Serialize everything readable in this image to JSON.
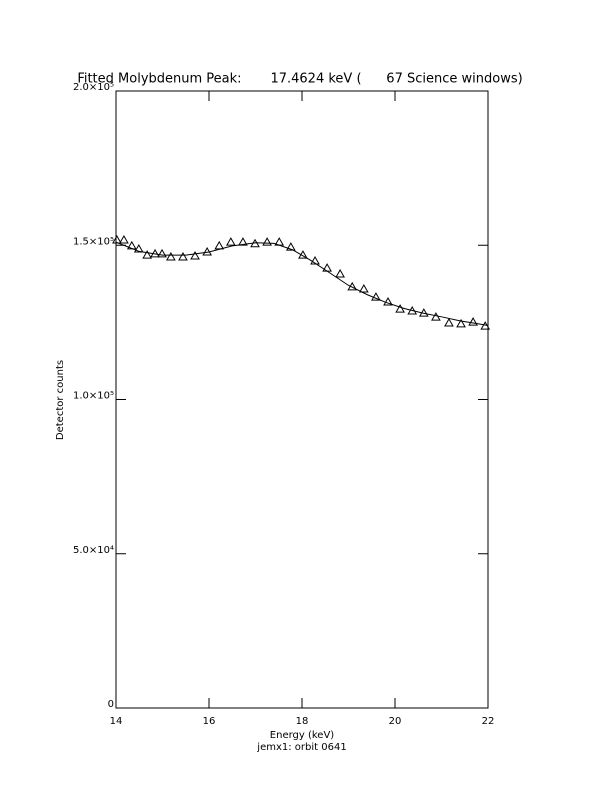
{
  "chart_data": {
    "type": "scatter",
    "title": "Fitted Molybdenum Peak:       17.4624 keV (      67 Science windows)",
    "x_label": "Energy (keV)",
    "subtitle": "jemx1: orbit 0641",
    "y_label": "Detector counts",
    "xlim": [
      14,
      22
    ],
    "xticks": [
      14,
      16,
      18,
      20,
      22
    ],
    "ylim": [
      0,
      200000
    ],
    "yticks": [
      0,
      {
        "value": 50000,
        "label": "5.0×10⁴"
      },
      {
        "value": 100000,
        "label": "1.0×10⁵"
      },
      {
        "value": 150000,
        "label": "1.5×10⁵"
      },
      {
        "value": 200000,
        "label": "2.0×10⁵"
      }
    ],
    "series": [
      {
        "mode": "markers",
        "marker": "triangle",
        "color": "#000000",
        "x": [
          14.02,
          14.17,
          14.34,
          14.49,
          14.67,
          14.84,
          14.99,
          15.18,
          15.44,
          15.7,
          15.96,
          16.22,
          16.47,
          16.73,
          16.99,
          17.25,
          17.51,
          17.76,
          18.02,
          18.28,
          18.54,
          18.82,
          19.08,
          19.33,
          19.59,
          19.85,
          20.11,
          20.37,
          20.62,
          20.88,
          21.16,
          21.42,
          21.68,
          21.94
        ],
        "values": [
          151700,
          151700,
          149800,
          148800,
          146800,
          147200,
          147200,
          146200,
          146200,
          146500,
          147800,
          149800,
          151000,
          151000,
          150500,
          151000,
          151000,
          149400,
          146800,
          144900,
          142600,
          140700,
          136500,
          135800,
          133200,
          131600,
          129300,
          128700,
          128000,
          126700,
          124800,
          124500,
          125100,
          123800
        ]
      },
      {
        "mode": "line",
        "color": "#000000",
        "x": [
          14,
          14.5,
          15,
          15.5,
          16,
          16.5,
          17,
          17.4,
          17.8,
          18.2,
          18.6,
          19,
          19.4,
          19.8,
          20.2,
          20.6,
          21,
          21.4,
          21.8,
          22
        ],
        "values": [
          151000,
          148000,
          146800,
          146800,
          147800,
          149800,
          150800,
          150600,
          148500,
          145000,
          141000,
          137000,
          134000,
          131500,
          129500,
          128000,
          126800,
          125500,
          124500,
          124000
        ]
      }
    ]
  }
}
